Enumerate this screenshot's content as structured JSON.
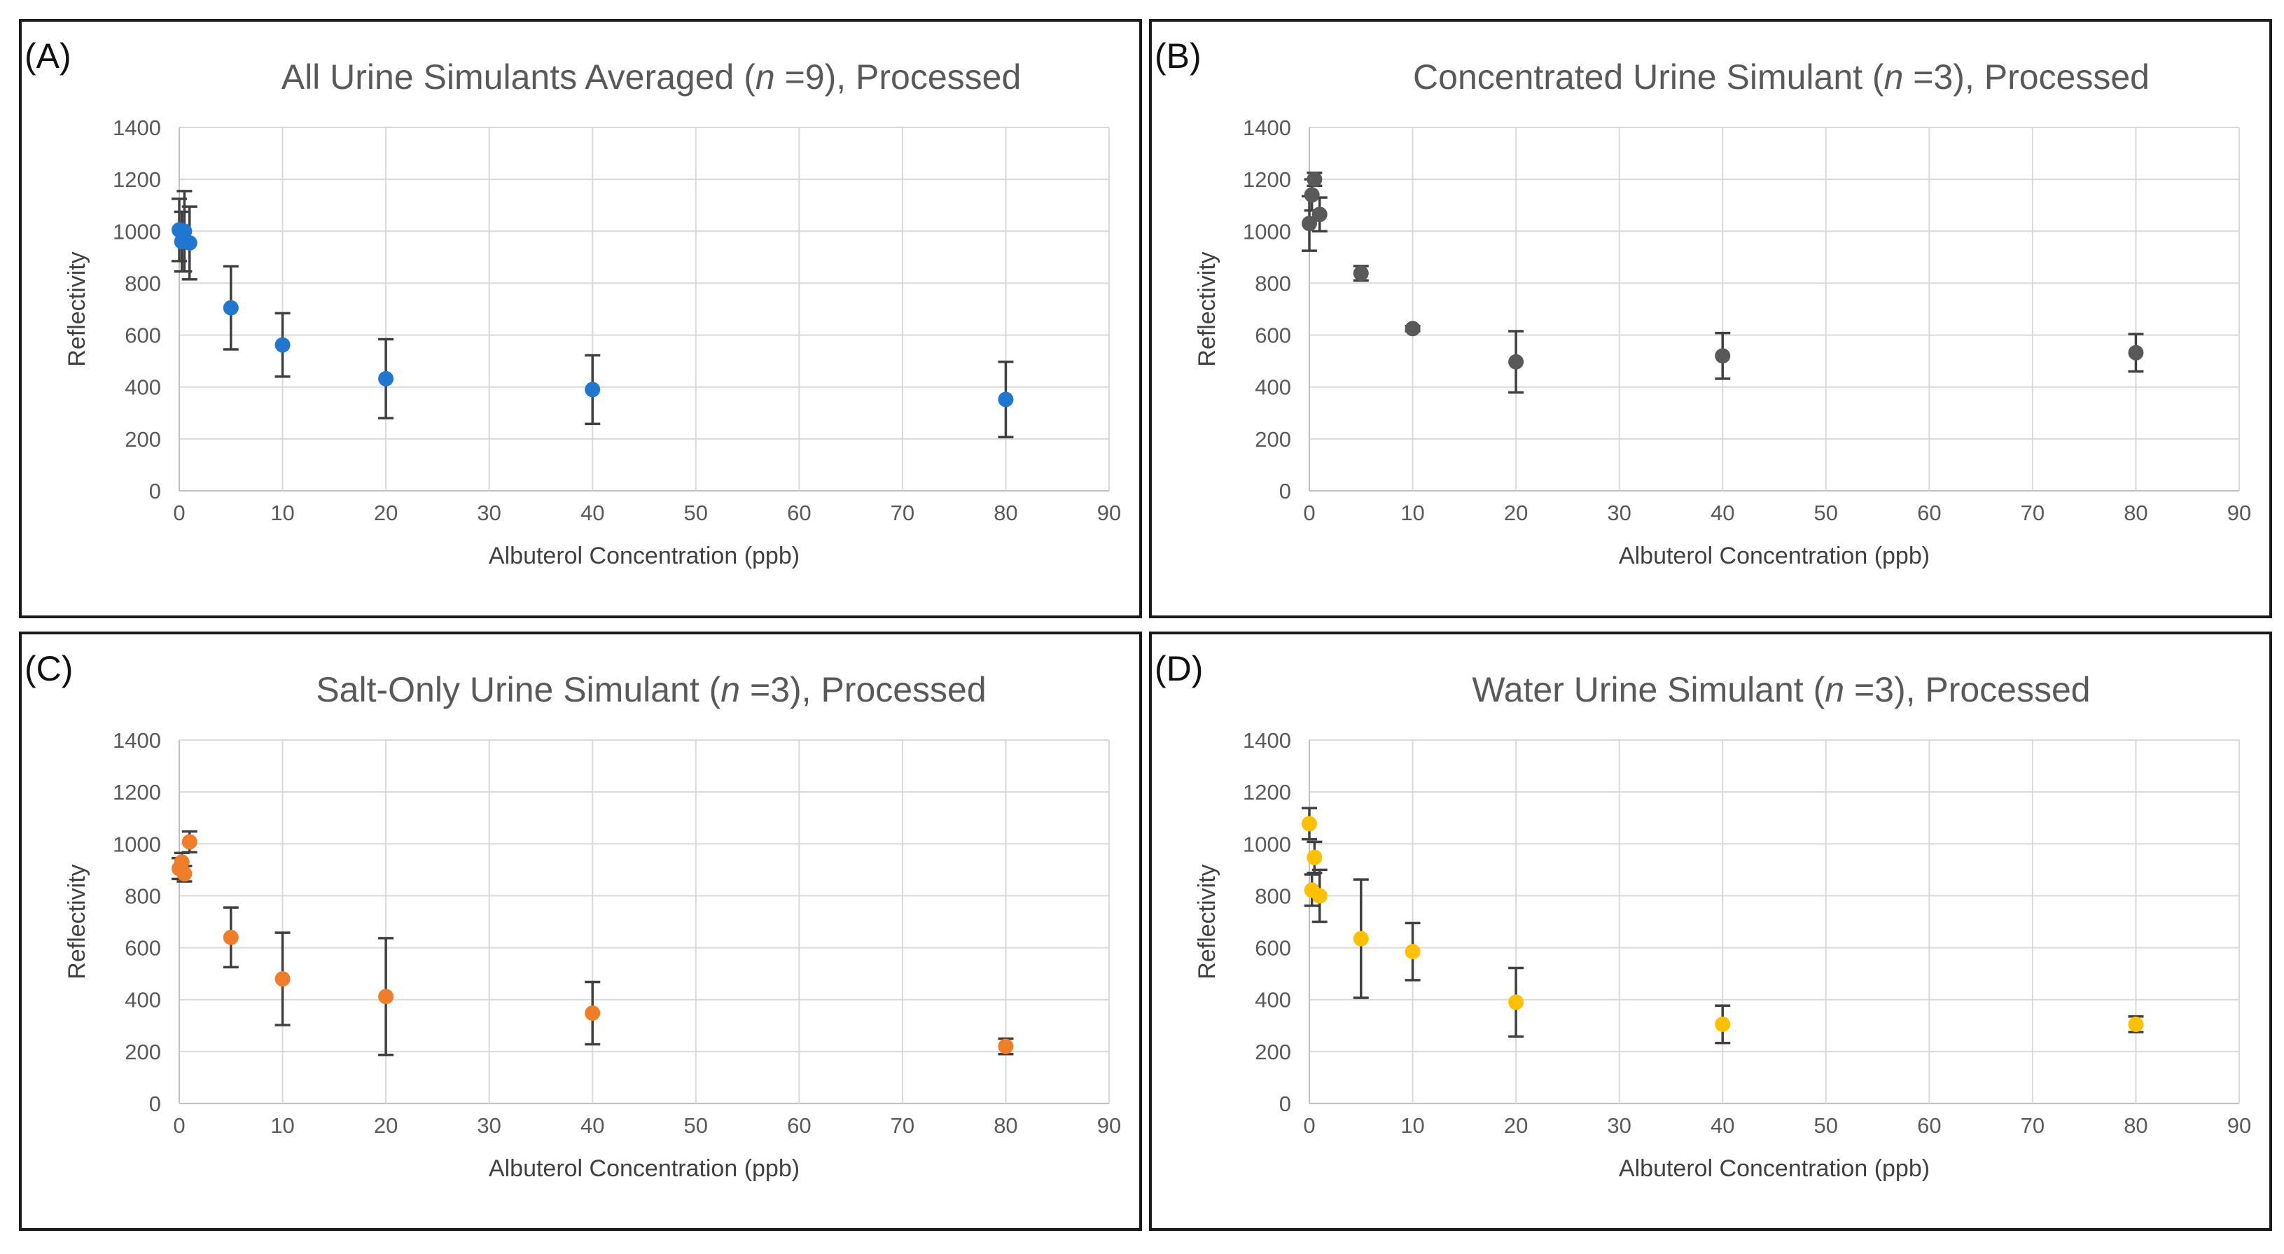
{
  "chart_data": [
    {
      "type": "scatter",
      "panel_label": "(A)",
      "title_prefix": "All Urine Simulants Averaged (",
      "title_n": "n",
      "title_suffix": " =9), Processed",
      "xlabel": "Albuterol Concentration (ppb)",
      "ylabel": "Reflectivity",
      "xlim": [
        0,
        90
      ],
      "ylim": [
        0,
        1400
      ],
      "xticks": [
        0,
        10,
        20,
        30,
        40,
        50,
        60,
        70,
        80,
        90
      ],
      "yticks": [
        0,
        200,
        400,
        600,
        800,
        1000,
        1200,
        1400
      ],
      "color": "#1f77d0",
      "series": [
        {
          "name": "All Urine Simulants",
          "x": [
            0,
            0.25,
            0.5,
            1,
            5,
            10,
            20,
            40,
            80
          ],
          "y": [
            1005,
            960,
            1000,
            955,
            705,
            562,
            432,
            390,
            352
          ],
          "err": [
            120,
            115,
            155,
            140,
            160,
            122,
            152,
            132,
            145
          ]
        }
      ]
    },
    {
      "type": "scatter",
      "panel_label": "(B)",
      "title_prefix": "Concentrated Urine Simulant (",
      "title_n": "n",
      "title_suffix": " =3), Processed",
      "xlabel": "Albuterol Concentration (ppb)",
      "ylabel": "Reflectivity",
      "xlim": [
        0,
        90
      ],
      "ylim": [
        0,
        1400
      ],
      "xticks": [
        0,
        10,
        20,
        30,
        40,
        50,
        60,
        70,
        80,
        90
      ],
      "yticks": [
        0,
        200,
        400,
        600,
        800,
        1000,
        1200,
        1400
      ],
      "color": "#595959",
      "series": [
        {
          "name": "Concentrated Urine Simulant",
          "x": [
            0,
            0.25,
            0.5,
            1,
            5,
            10,
            20,
            40,
            80
          ],
          "y": [
            1030,
            1140,
            1200,
            1065,
            838,
            625,
            497,
            520,
            532
          ],
          "err": [
            105,
            60,
            25,
            65,
            28,
            10,
            118,
            88,
            72
          ]
        }
      ]
    },
    {
      "type": "scatter",
      "panel_label": "(C)",
      "title_prefix": "Salt-Only Urine Simulant (",
      "title_n": "n",
      "title_suffix": " =3), Processed",
      "xlabel": "Albuterol Concentration (ppb)",
      "ylabel": "Reflectivity",
      "xlim": [
        0,
        90
      ],
      "ylim": [
        0,
        1400
      ],
      "xticks": [
        0,
        10,
        20,
        30,
        40,
        50,
        60,
        70,
        80,
        90
      ],
      "yticks": [
        0,
        200,
        400,
        600,
        800,
        1000,
        1200,
        1400
      ],
      "color": "#f07d28",
      "series": [
        {
          "name": "Salt-Only Urine Simulant",
          "x": [
            0,
            0.25,
            0.5,
            1,
            5,
            10,
            20,
            40,
            80
          ],
          "y": [
            905,
            930,
            885,
            1008,
            640,
            480,
            412,
            348,
            220
          ],
          "err": [
            40,
            35,
            30,
            40,
            115,
            178,
            225,
            120,
            30
          ]
        }
      ]
    },
    {
      "type": "scatter",
      "panel_label": "(D)",
      "title_prefix": "Water Urine Simulant (",
      "title_n": "n",
      "title_suffix": " =3), Processed",
      "xlabel": "Albuterol Concentration (ppb)",
      "ylabel": "Reflectivity",
      "xlim": [
        0,
        90
      ],
      "ylim": [
        0,
        1400
      ],
      "xticks": [
        0,
        10,
        20,
        30,
        40,
        50,
        60,
        70,
        80,
        90
      ],
      "yticks": [
        0,
        200,
        400,
        600,
        800,
        1000,
        1200,
        1400
      ],
      "color": "#ffc000",
      "series": [
        {
          "name": "Water Urine Simulant",
          "x": [
            0,
            0.25,
            0.5,
            1,
            5,
            10,
            20,
            40,
            80
          ],
          "y": [
            1078,
            822,
            948,
            800,
            635,
            585,
            390,
            305,
            305
          ],
          "err": [
            60,
            60,
            60,
            100,
            228,
            110,
            132,
            72,
            30
          ]
        }
      ]
    }
  ]
}
